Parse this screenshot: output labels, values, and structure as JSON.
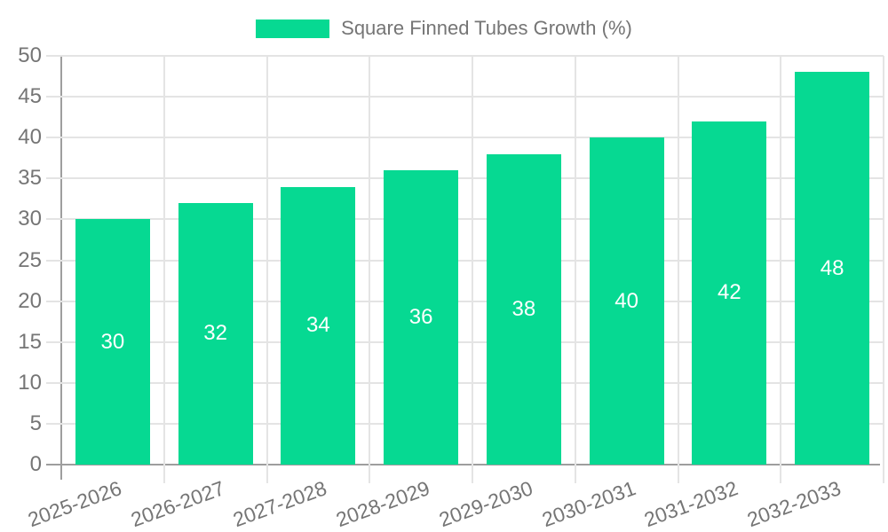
{
  "chart_data": {
    "type": "bar",
    "title": "",
    "legend": {
      "position": "top",
      "items": [
        {
          "label": "Square Finned Tubes Growth (%)",
          "color": "#06d992"
        }
      ]
    },
    "categories": [
      "2025-2026",
      "2026-2027",
      "2027-2028",
      "2028-2029",
      "2029-2030",
      "2030-2031",
      "2031-2032",
      "2032-2033"
    ],
    "series": [
      {
        "name": "Square Finned Tubes Growth (%)",
        "values": [
          30,
          32,
          34,
          36,
          38,
          40,
          42,
          48
        ]
      }
    ],
    "show_bar_value_labels": true,
    "y_axis": {
      "min": 0,
      "max": 50,
      "tick_step": 5,
      "ticks": [
        0,
        5,
        10,
        15,
        20,
        25,
        30,
        35,
        40,
        45,
        50
      ]
    },
    "x_axis": {
      "label_rotation_deg": -20
    },
    "grid": {
      "horizontal": true,
      "vertical": true
    },
    "colors": {
      "bar": "#06d992",
      "grid": "#e4e4e4",
      "axis_line": "#9e9e9e",
      "text": "#757575",
      "value_label": "#ffffff",
      "background": "#ffffff"
    }
  }
}
